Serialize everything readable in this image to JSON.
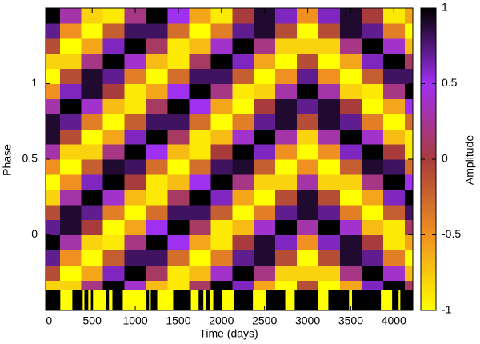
{
  "chart_data": {
    "type": "heatmap",
    "x_label": "Time (days)",
    "y_label": "Phase",
    "colorbar_label": "Amplitude",
    "xlim": [
      -40,
      4220
    ],
    "ylim": [
      -0.5,
      1.5
    ],
    "xticks": [
      0,
      500,
      1000,
      1500,
      2000,
      2500,
      3000,
      3500,
      4000
    ],
    "yticks": [
      0,
      0.5,
      1
    ],
    "clim": [
      -1,
      1
    ],
    "cticks": [
      -1,
      -0.5,
      0,
      0.5,
      1
    ],
    "colormap": [
      "#ffff00",
      "#f09020",
      "#a83c3c",
      "#a030f0",
      "#000000"
    ],
    "x": [
      0,
      250,
      500,
      750,
      1000,
      1250,
      1500,
      1750,
      2000,
      2250,
      2500,
      2750,
      3000,
      3250,
      3500,
      3750,
      4000,
      4250
    ],
    "y": [
      -0.35,
      -0.25,
      -0.15,
      -0.05,
      0.05,
      0.15,
      0.25,
      0.35,
      0.45,
      0.55,
      0.65,
      0.75,
      0.85,
      0.95,
      1.05,
      1.15,
      1.25,
      1.35,
      1.45
    ],
    "z": [
      [
        -0.8,
        -0.1,
        0.7,
        1,
        0.7,
        -0.1,
        -0.8,
        -1,
        -0.5,
        0.3,
        0.9,
        0.9,
        0.3,
        -0.5,
        -1,
        -0.8,
        -0.1,
        0.7,
        1
      ],
      [
        -0.8,
        -1,
        -0.5,
        0.3,
        0.9,
        0.9,
        0.3,
        -0.5,
        -1,
        -0.8,
        -0.1,
        0.7,
        1,
        0.6,
        -0.1,
        -0.8,
        -1,
        -0.5,
        0.3
      ],
      [
        0.2,
        -0.6,
        -1,
        -0.8,
        0,
        0.7,
        1,
        0.6,
        -0.2,
        -0.8,
        -1,
        -0.4,
        0.4,
        0.9,
        0.9,
        0.2,
        -0.6,
        -1,
        -0.8
      ],
      [
        1,
        0.6,
        -0.2,
        -0.9,
        -1,
        -0.4,
        0.4,
        1,
        0.9,
        0.2,
        -0.6,
        -1,
        -0.7,
        0,
        0.7,
        1,
        0.6,
        -0.2,
        -0.9
      ],
      [
        0.4,
        1,
        0.8,
        0.2,
        -0.6,
        -1,
        -0.7,
        0,
        0.8,
        1,
        0.6,
        -0.2,
        -0.9,
        -0.9,
        -0.4,
        0.4,
        1,
        0.8,
        0.2
      ],
      [
        -0.7,
        0.1,
        0.8,
        1,
        0.5,
        -0.3,
        -0.9,
        -0.9,
        -0.3,
        0.5,
        1,
        0.8,
        0.1,
        -0.6,
        -1,
        -0.7,
        0.1,
        0.8,
        1
      ],
      [
        -0.9,
        -0.9,
        -0.3,
        0.5,
        1,
        0.8,
        0.1,
        -0.7,
        -1,
        -0.7,
        0.1,
        0.8,
        1,
        0.5,
        -0.3,
        -0.9,
        -0.9,
        -0.3,
        0.5
      ],
      [
        0.1,
        -0.7,
        -1,
        -0.6,
        0.1,
        0.8,
        1,
        0.5,
        -0.3,
        -0.9,
        -0.9,
        -0.3,
        0.5,
        1,
        0.8,
        0.1,
        -0.7,
        -1,
        -0.6
      ],
      [
        1,
        0.4,
        -0.4,
        -0.9,
        -0.9,
        -0.2,
        0.6,
        1,
        0.8,
        0,
        -0.7,
        -1,
        -0.6,
        0.2,
        0.8,
        1,
        0.4,
        -0.4,
        -0.9
      ],
      [
        0.6,
        1,
        0.7,
        0,
        -0.7,
        -1,
        -0.6,
        0.2,
        0.9,
        1,
        0.4,
        -0.4,
        -1,
        -0.9,
        -0.2,
        0.6,
        1,
        0.7,
        0
      ],
      [
        -0.6,
        0.2,
        0.9,
        0.9,
        0.4,
        -0.4,
        -1,
        -0.8,
        -0.2,
        0.6,
        1,
        0.7,
        0,
        -0.8,
        -1,
        -0.6,
        0.2,
        0.9,
        0.9
      ],
      [
        -1,
        -0.8,
        -0.1,
        0.6,
        1,
        0.7,
        -0.1,
        -0.8,
        -1,
        -0.5,
        0.3,
        0.9,
        0.9,
        0.3,
        -0.5,
        -1,
        -0.8,
        -0.1,
        0.6
      ],
      [
        -0.1,
        -0.8,
        -1,
        -0.5,
        0.3,
        0.9,
        0.9,
        0.3,
        -0.5,
        -1,
        -0.8,
        -0.1,
        0.7,
        1,
        0.7,
        -0.1,
        -0.8,
        -1,
        -0.5
      ],
      [
        -1,
        -0.8,
        -0.1,
        0.6,
        1,
        0.7,
        -0.1,
        -0.8,
        -1,
        -0.5,
        0.3,
        0.9,
        0.9,
        0.3,
        -0.5,
        -1,
        -0.8,
        -0.1,
        0.6
      ],
      [
        -0.6,
        0.2,
        0.9,
        0.9,
        0.4,
        -0.4,
        -1,
        -0.8,
        -0.2,
        0.6,
        1,
        0.7,
        0,
        -0.8,
        -1,
        -0.6,
        0.2,
        0.9,
        0.9
      ],
      [
        0.6,
        1,
        0.7,
        0,
        -0.7,
        -1,
        -0.6,
        0.2,
        0.9,
        1,
        0.4,
        -0.4,
        -1,
        -0.9,
        -0.2,
        0.6,
        1,
        0.7,
        0
      ],
      [
        1,
        0.4,
        -0.4,
        -0.9,
        -0.9,
        -0.2,
        0.6,
        1,
        0.8,
        0,
        -0.7,
        -1,
        -0.6,
        0.2,
        0.8,
        1,
        0.4,
        -0.4,
        -0.9
      ],
      [
        0.1,
        -0.7,
        -1,
        -0.6,
        0.1,
        0.8,
        1,
        0.5,
        -0.3,
        -0.9,
        -0.9,
        -0.3,
        0.5,
        1,
        0.8,
        0.1,
        -0.7,
        -1,
        -0.6
      ]
    ],
    "coverage_color": "#ffff00",
    "coverage_background": "#000000",
    "coverage": [
      [
        130,
        270
      ],
      [
        390,
        410
      ],
      [
        455,
        485
      ],
      [
        510,
        660
      ],
      [
        695,
        735
      ],
      [
        855,
        1130
      ],
      [
        1160,
        1180
      ],
      [
        1255,
        1440
      ],
      [
        1645,
        1735
      ],
      [
        1790,
        1820
      ],
      [
        1865,
        1905
      ],
      [
        2005,
        2145
      ],
      [
        2365,
        2515
      ],
      [
        2740,
        2850
      ],
      [
        3120,
        3240
      ],
      [
        3480,
        3515
      ],
      [
        3850,
        3980
      ],
      [
        4055,
        4075
      ]
    ]
  }
}
